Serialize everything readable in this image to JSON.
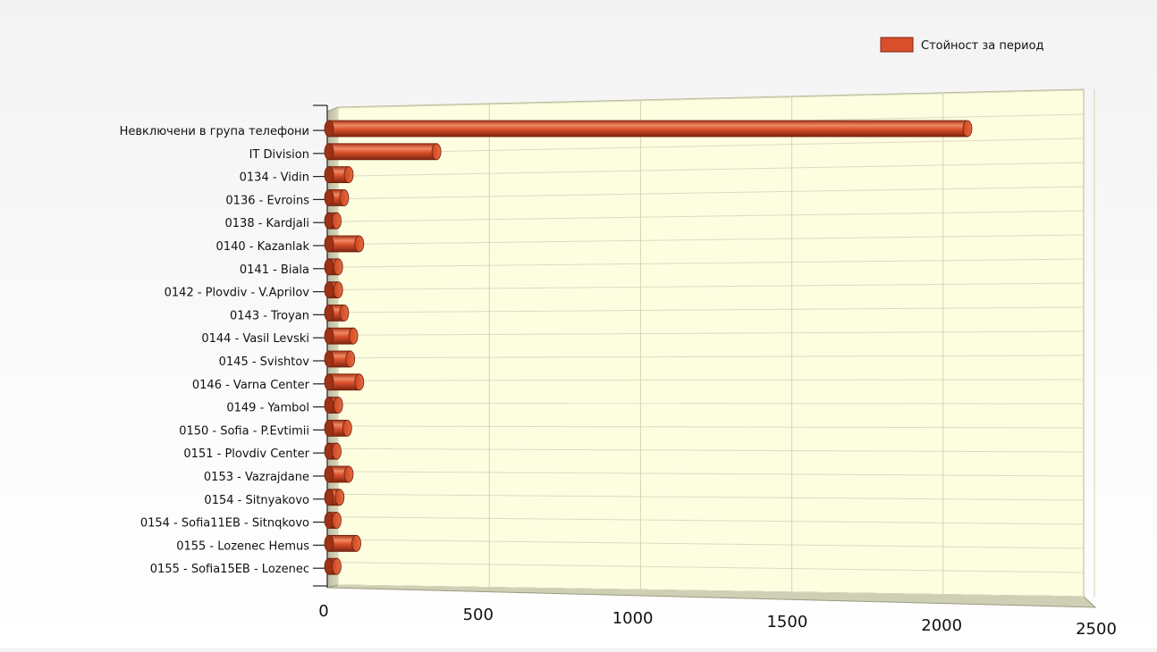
{
  "chart_data": {
    "type": "bar",
    "orientation": "horizontal",
    "style": "3d-cylinder",
    "legend": {
      "label": "Стойност за период",
      "color": "#d94f2b",
      "placement": "top-right"
    },
    "categories": [
      "Невключени в група телефони",
      "IT Division",
      "0134 - Vidin",
      "0136 - Evroins",
      "0138 - Kardjali",
      "0140 - Kazanlak",
      "0141 - Biala",
      "0142 - Plovdiv - V.Aprilov",
      "0143 - Troyan",
      "0144 - Vasil Levski",
      "0145 - Svishtov",
      "0146 - Varna Center",
      "0149 - Yambol",
      "0150 - Sofia - P.Evtimii",
      "0151 - Plovdiv Center",
      "0153 - Vazrajdane",
      "0154 - Sitnyakovo",
      "0154 - Sofia11EB - Sitnqkovo",
      "0155 - Lozenec Hemus",
      "0155 - Sofia15EB - Lozenec"
    ],
    "series": [
      {
        "name": "Стойност за период",
        "values": [
          2110,
          355,
          65,
          50,
          25,
          100,
          30,
          30,
          50,
          80,
          70,
          100,
          30,
          60,
          25,
          65,
          35,
          25,
          90,
          25
        ]
      }
    ],
    "xlim": [
      0,
      2500
    ],
    "xticks": [
      "0",
      "500",
      "1000",
      "1500",
      "2000",
      "2500"
    ],
    "grid": true,
    "colors": {
      "bar": "#d94f2b",
      "bar_dark": "#8f2a12",
      "plot_bg": "#fdfde0",
      "grid": "#cfcfb0",
      "side_wall": "#c8c8a8"
    }
  }
}
